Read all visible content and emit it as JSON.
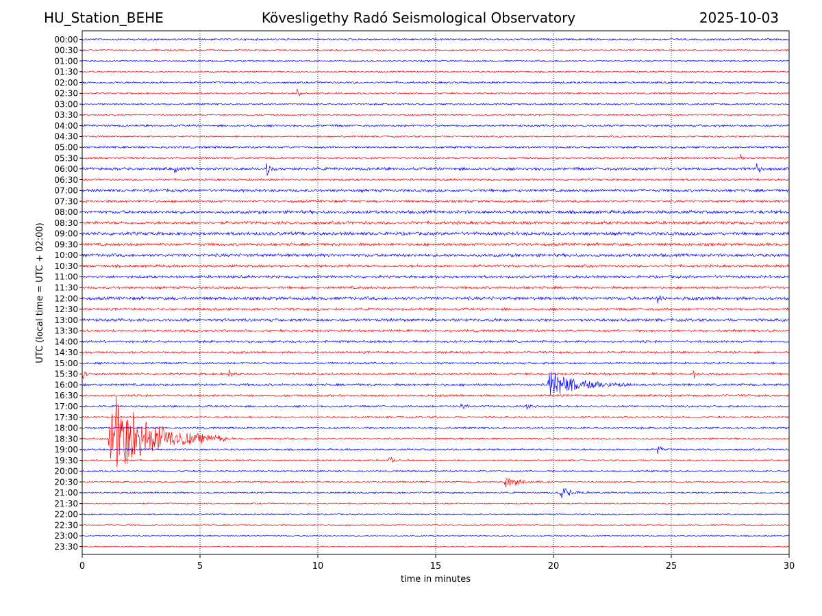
{
  "header": {
    "station": "HU_Station_BEHE",
    "title": "Kövesligethy Radó Seismological Observatory",
    "date": "2025-10-03"
  },
  "chart_data": {
    "type": "line",
    "subtype": "helicorder",
    "title": "Kövesligethy Radó Seismological Observatory",
    "xlabel": "time in minutes",
    "ylabel": "UTC (local time = UTC + 02:00)",
    "xlim": [
      0,
      30
    ],
    "x_ticks": [
      "0",
      "5",
      "10",
      "15",
      "20",
      "25",
      "30"
    ],
    "grid": "vertical dotted at every 5 minutes",
    "colors": [
      "#0000ff",
      "#ff0000"
    ],
    "row_labels": [
      "00:00",
      "00:30",
      "01:00",
      "01:30",
      "02:00",
      "02:30",
      "03:00",
      "03:30",
      "04:00",
      "04:30",
      "05:00",
      "05:30",
      "06:00",
      "06:30",
      "07:00",
      "07:30",
      "08:00",
      "08:30",
      "09:00",
      "09:30",
      "10:00",
      "10:30",
      "11:00",
      "11:30",
      "12:00",
      "12:30",
      "13:00",
      "13:30",
      "14:00",
      "14:30",
      "15:00",
      "15:30",
      "16:00",
      "16:30",
      "17:00",
      "17:30",
      "18:00",
      "18:30",
      "19:00",
      "19:30",
      "20:00",
      "20:30",
      "21:00",
      "21:30",
      "22:00",
      "22:30",
      "23:00",
      "23:30"
    ],
    "noise_levels": [
      0.35,
      0.32,
      0.3,
      0.3,
      0.38,
      0.32,
      0.34,
      0.3,
      0.4,
      0.32,
      0.4,
      0.36,
      0.55,
      0.4,
      0.55,
      0.48,
      0.62,
      0.58,
      0.65,
      0.55,
      0.6,
      0.5,
      0.5,
      0.48,
      0.6,
      0.45,
      0.55,
      0.45,
      0.45,
      0.42,
      0.4,
      0.45,
      0.45,
      0.4,
      0.38,
      0.35,
      0.38,
      0.35,
      0.35,
      0.3,
      0.3,
      0.3,
      0.32,
      0.25,
      0.25,
      0.22,
      0.22,
      0.22
    ],
    "events": [
      {
        "row": 5,
        "start_min": 9.1,
        "duration_min": 0.3,
        "amplitude": 0.9
      },
      {
        "row": 11,
        "start_min": 27.9,
        "duration_min": 0.2,
        "amplitude": 1.2
      },
      {
        "row": 12,
        "start_min": 3.9,
        "duration_min": 0.2,
        "amplitude": 0.8
      },
      {
        "row": 12,
        "start_min": 7.8,
        "duration_min": 0.5,
        "amplitude": 0.9
      },
      {
        "row": 12,
        "start_min": 28.6,
        "duration_min": 0.35,
        "amplitude": 1.1
      },
      {
        "row": 24,
        "start_min": 24.4,
        "duration_min": 0.3,
        "amplitude": 0.8
      },
      {
        "row": 31,
        "start_min": 0.0,
        "duration_min": 0.3,
        "amplitude": 0.8
      },
      {
        "row": 31,
        "start_min": 6.2,
        "duration_min": 0.3,
        "amplitude": 0.8
      },
      {
        "row": 31,
        "start_min": 25.9,
        "duration_min": 0.3,
        "amplitude": 0.8
      },
      {
        "row": 32,
        "start_min": 19.7,
        "duration_min": 3.6,
        "amplitude": 1.6
      },
      {
        "row": 34,
        "start_min": 16.0,
        "duration_min": 0.6,
        "amplitude": 0.5
      },
      {
        "row": 34,
        "start_min": 18.8,
        "duration_min": 0.5,
        "amplitude": 0.5
      },
      {
        "row": 37,
        "start_min": 1.1,
        "duration_min": 5.0,
        "amplitude": 5.2
      },
      {
        "row": 38,
        "start_min": 24.4,
        "duration_min": 0.4,
        "amplitude": 0.9
      },
      {
        "row": 39,
        "start_min": 13.0,
        "duration_min": 0.5,
        "amplitude": 0.7
      },
      {
        "row": 41,
        "start_min": 17.9,
        "duration_min": 1.7,
        "amplitude": 0.8
      },
      {
        "row": 42,
        "start_min": 20.2,
        "duration_min": 1.5,
        "amplitude": 0.7
      }
    ]
  }
}
